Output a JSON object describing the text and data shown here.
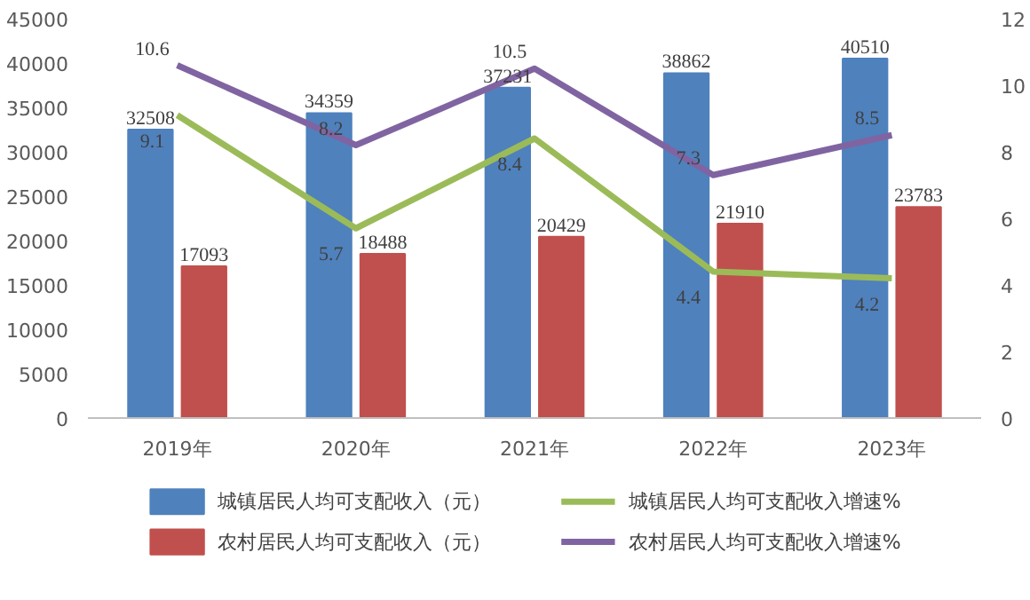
{
  "chart_data": {
    "type": "bar",
    "categories": [
      "2019年",
      "2020年",
      "2021年",
      "2022年",
      "2023年"
    ],
    "series": [
      {
        "name": "城镇居民人均可支配收入（元）",
        "color": "#4f81bd",
        "values": [
          32508,
          34359,
          37231,
          38862,
          40510
        ]
      },
      {
        "name": "农村居民人均可支配收入（元）",
        "color": "#c0504d",
        "values": [
          17093,
          18488,
          20429,
          21910,
          23783
        ]
      },
      {
        "name": "城镇居民人均可支配收入增速%",
        "type": "line",
        "axis": "y2",
        "color": "#9bbb59",
        "values": [
          9.1,
          5.7,
          8.4,
          4.4,
          4.2
        ]
      },
      {
        "name": "农村居民人均可支配收入增速%",
        "type": "line",
        "axis": "y2",
        "color": "#8064a2",
        "values": [
          10.6,
          8.2,
          10.5,
          7.3,
          8.5
        ]
      }
    ],
    "ylim": [
      0,
      45000
    ],
    "yticks": [
      0,
      5000,
      10000,
      15000,
      20000,
      25000,
      30000,
      35000,
      40000,
      45000
    ],
    "y2lim": [
      0,
      12
    ],
    "y2ticks": [
      0,
      2,
      4,
      6,
      8,
      10,
      12
    ],
    "data_labels": true,
    "grid": false,
    "legend": "bottom",
    "marker": "none",
    "line_style": "solid"
  }
}
